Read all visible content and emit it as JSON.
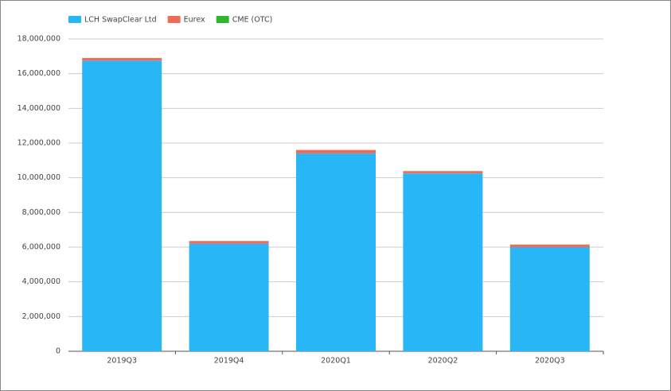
{
  "chart_data": {
    "type": "stacked_bar",
    "categories": [
      "2019Q3",
      "2019Q4",
      "2020Q1",
      "2020Q2",
      "2020Q3"
    ],
    "series": [
      {
        "name": "LCH SwapClear Ltd",
        "color": "#29b6f6",
        "values": [
          16750000,
          6200000,
          11400000,
          10250000,
          6000000
        ]
      },
      {
        "name": "Eurex",
        "color": "#ef6c5a",
        "values": [
          150000,
          150000,
          200000,
          130000,
          150000
        ]
      },
      {
        "name": "CME (OTC)",
        "color": "#2eb82e",
        "values": [
          5000,
          5000,
          5000,
          5000,
          5000
        ]
      }
    ],
    "ylim": [
      0,
      18000000
    ],
    "yticks": [
      0,
      {
        "value": 2000000,
        "label": "2,000,000"
      },
      {
        "value": 4000000,
        "label": "4,000,000"
      },
      {
        "value": 6000000,
        "label": "6,000,000"
      },
      {
        "value": 8000000,
        "label": "8,000,000"
      },
      {
        "value": 10000000,
        "label": "10,000,000"
      },
      {
        "value": 12000000,
        "label": "12,000,000"
      },
      {
        "value": 14000000,
        "label": "14,000,000"
      },
      {
        "value": 16000000,
        "label": "16,000,000"
      },
      {
        "value": 18000000,
        "label": "18,000,000"
      }
    ],
    "grid": true,
    "legend": "top-left"
  }
}
